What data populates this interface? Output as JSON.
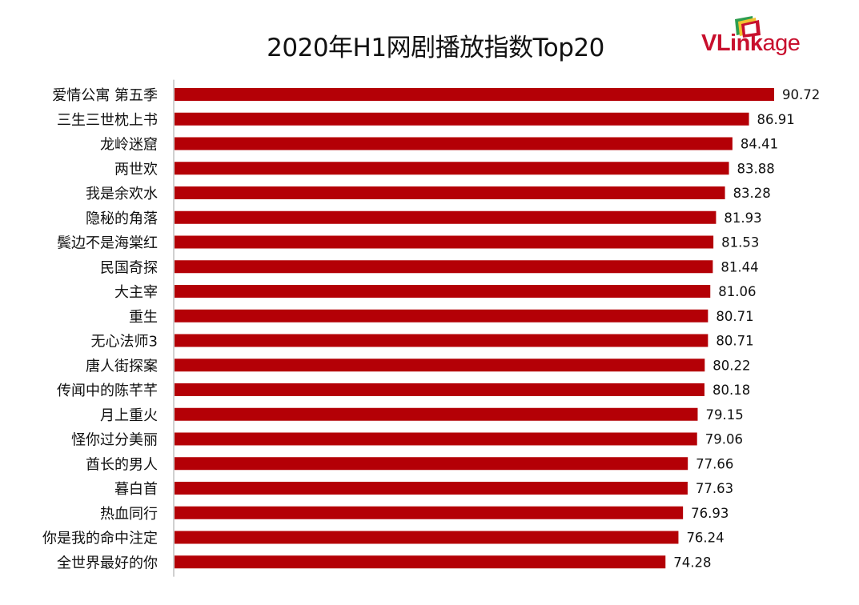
{
  "title": "2020年H1网剧播放指数Top20",
  "logo": {
    "prefix": "VLink",
    "suffix": "age",
    "brand_color": "#c8102e"
  },
  "colors": {
    "bar": "#b40006",
    "axis": "#b0b0b0",
    "text": "#111111"
  },
  "chart_data": {
    "type": "bar",
    "orientation": "horizontal",
    "title": "2020年H1网剧播放指数Top20",
    "xlabel": "",
    "ylabel": "",
    "xlim": [
      0,
      100
    ],
    "grid": false,
    "categories": [
      "爱情公寓 第五季",
      "三生三世枕上书",
      "龙岭迷窟",
      "两世欢",
      "我是余欢水",
      "隐秘的角落",
      "鬓边不是海棠红",
      "民国奇探",
      "大主宰",
      "重生",
      "无心法师3",
      "唐人街探案",
      "传闻中的陈芊芊",
      "月上重火",
      "怪你过分美丽",
      "酋长的男人",
      "暮白首",
      "热血同行",
      "你是我的命中注定",
      "全世界最好的你"
    ],
    "values": [
      90.72,
      86.91,
      84.41,
      83.88,
      83.28,
      81.93,
      81.53,
      81.44,
      81.06,
      80.71,
      80.71,
      80.22,
      80.18,
      79.15,
      79.06,
      77.66,
      77.63,
      76.93,
      76.24,
      74.28
    ]
  }
}
